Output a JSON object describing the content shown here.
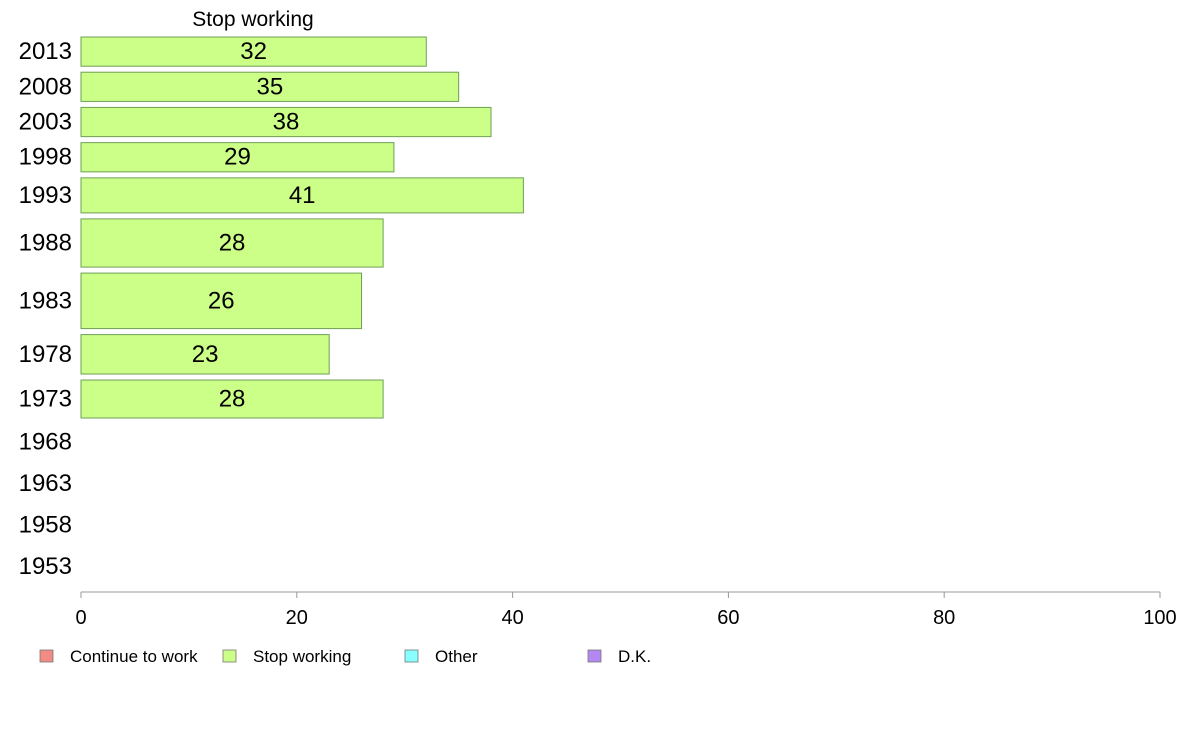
{
  "chart_data": {
    "type": "bar",
    "orientation": "horizontal",
    "title": "Stop working",
    "categories": [
      "2013",
      "2008",
      "2003",
      "1998",
      "1993",
      "1988",
      "1983",
      "1978",
      "1973",
      "1968",
      "1963",
      "1958",
      "1953"
    ],
    "series": [
      {
        "name": "Stop working",
        "color": "#ccff88",
        "values": [
          32,
          35,
          38,
          29,
          41,
          28,
          26,
          23,
          28,
          null,
          null,
          null,
          null
        ]
      }
    ],
    "bar_weights": [
      1,
      1,
      1,
      1,
      1.2,
      1.65,
      1.9,
      1.35,
      1.3,
      0,
      0,
      0,
      0
    ],
    "xlim": [
      0,
      100
    ],
    "xticks": [
      0,
      20,
      40,
      60,
      80,
      100
    ],
    "grid": false,
    "legend": {
      "placement": "bottom-left",
      "items": [
        {
          "label": "Continue to work",
          "color": "#f28b82"
        },
        {
          "label": "Stop working",
          "color": "#ccff88"
        },
        {
          "label": "Other",
          "color": "#88ffff"
        },
        {
          "label": "D.K.",
          "color": "#b388f2"
        }
      ]
    }
  }
}
